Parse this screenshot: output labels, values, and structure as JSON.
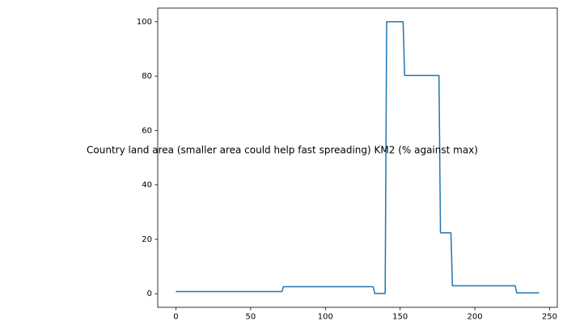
{
  "chart_data": {
    "type": "line",
    "title": "Country land area (smaller area could help fast spreading) KM2  (% against max)",
    "xlabel": "",
    "ylabel": "",
    "xlim": [
      -12.15,
      255.15
    ],
    "ylim": [
      -5,
      105
    ],
    "xticks": [
      0,
      50,
      100,
      150,
      200,
      250
    ],
    "yticks": [
      0,
      20,
      40,
      60,
      80,
      100
    ],
    "grid": false,
    "legend": "none",
    "series": [
      {
        "color": "#1f77b4",
        "x": [
          0,
          71,
          72,
          132,
          133,
          140,
          141,
          152,
          153,
          176,
          177,
          184,
          185,
          227,
          228,
          243
        ],
        "y": [
          0.8,
          0.8,
          2.6,
          2.6,
          0.1,
          0.1,
          100,
          100,
          80.2,
          80.2,
          22.4,
          22.4,
          2.9,
          2.9,
          0.3,
          0.3
        ]
      }
    ]
  }
}
